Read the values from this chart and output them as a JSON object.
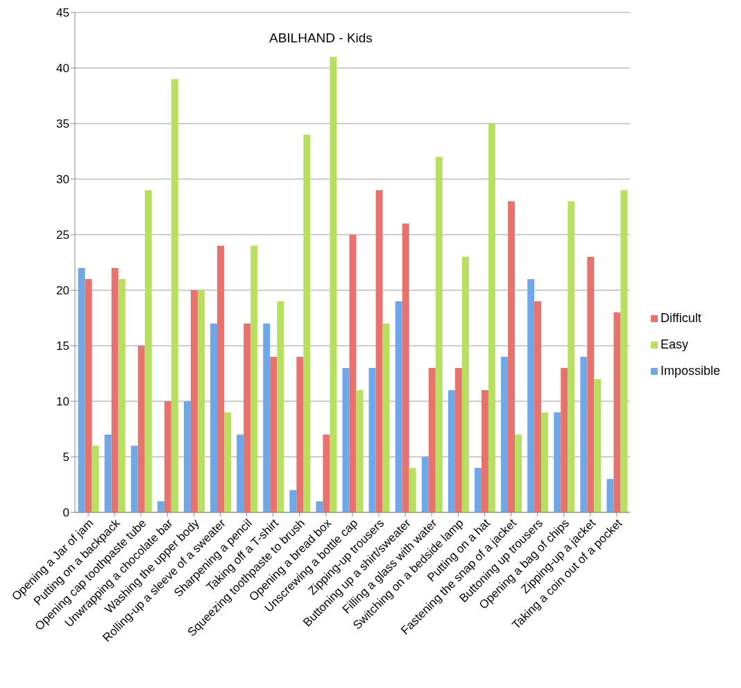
{
  "chart_data": {
    "type": "bar",
    "title": "ABILHAND - Kids",
    "categories": [
      "Opening a Jar of jam",
      "Putting on a backpack",
      "Opening cap toothpaste tube",
      "Unwrapping a chocolate bar",
      "Washing the upper body",
      "Rolling-up a sleeve of a sweater",
      "Sharpening a pencil",
      "Taking off a T-shirt",
      "Squeezing toothpaste to brush",
      "Opening a bread box",
      "Unscrewing a bottle cap",
      "Zipping-up trousers",
      "Buttoning up a shirt/sweater",
      "Filling a glass with water",
      "Switching on a bedside lamp",
      "Putting on a hat",
      "Fastening the snap of a jacket",
      "Buttoning up trousers",
      "Opening a bag of chips",
      "Zipping-up a jacket",
      "Taking a coin out of a pocket"
    ],
    "series": [
      {
        "name": "Impossible",
        "color": "#6fa8e8",
        "values": [
          22,
          7,
          6,
          1,
          10,
          17,
          7,
          17,
          2,
          1,
          13,
          13,
          19,
          5,
          11,
          4,
          14,
          21,
          9,
          14,
          3
        ]
      },
      {
        "name": "Difficult",
        "color": "#e8736e",
        "values": [
          21,
          22,
          15,
          10,
          20,
          24,
          17,
          14,
          14,
          7,
          25,
          29,
          26,
          13,
          13,
          11,
          28,
          19,
          13,
          23,
          18
        ]
      },
      {
        "name": "Easy",
        "color": "#b8e060",
        "values": [
          6,
          21,
          29,
          39,
          20,
          9,
          24,
          19,
          34,
          41,
          11,
          17,
          4,
          32,
          23,
          35,
          7,
          9,
          28,
          12,
          29
        ]
      }
    ],
    "ylim": [
      0,
      45
    ],
    "yticks": [
      0,
      5,
      10,
      15,
      20,
      25,
      30,
      35,
      40,
      45
    ],
    "grid": "y",
    "legend": "right"
  }
}
